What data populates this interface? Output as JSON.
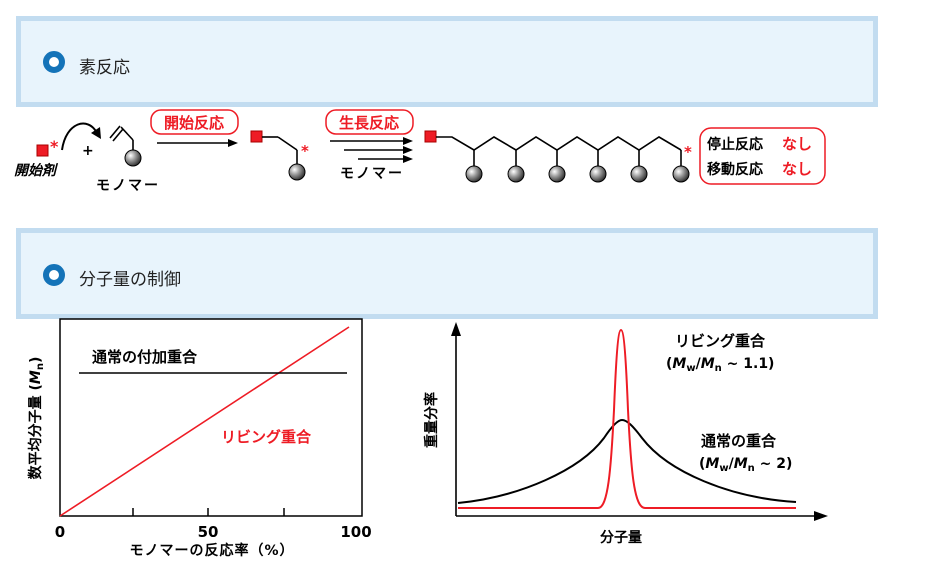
{
  "sections": {
    "s1": "素反応",
    "s2": "分子量の制御"
  },
  "scheme": {
    "initiator": "開始剤",
    "plus": "+",
    "monomer1": "モノマー",
    "init_rxn": "開始反応",
    "grow_rxn": "生長反応",
    "monomer2": "モノマー",
    "star": "*",
    "term_label": "停止反応",
    "transfer_label": "移動反応",
    "none1": "なし",
    "none2": "なし"
  },
  "chart_data": [
    {
      "type": "line",
      "x": [
        0,
        100
      ],
      "xlim": [
        0,
        100
      ],
      "xticks": [
        "0",
        "50",
        "100"
      ],
      "xlabel": "モノマーの反応率（%）",
      "ylabel": "数平均分子量 (Mn)",
      "series": [
        {
          "name": "リビング重合",
          "x": [
            0,
            100
          ],
          "y": [
            0,
            1.0
          ],
          "color": "#ee1c25"
        },
        {
          "name": "通常の付加重合",
          "x": [
            6,
            100
          ],
          "y": [
            0.72,
            0.72
          ],
          "color": "#000000"
        }
      ]
    },
    {
      "type": "line",
      "xlabel": "分子量",
      "ylabel": "重量分率",
      "series": [
        {
          "name": "リビング重合",
          "label": "(Mw/Mn ~ 1.1)",
          "color": "#ee1c25"
        },
        {
          "name": "通常の重合",
          "label": "(Mw/Mn ~ 2)",
          "color": "#000000"
        }
      ]
    }
  ],
  "left_chart": {
    "tick0": "0",
    "tick50": "50",
    "tick100": "100",
    "xlabel": "モノマーの反応率（%）",
    "ylabel_main": "数平均分子量 (",
    "ylabel_M": "M",
    "ylabel_n": "n",
    "ylabel_close": ")",
    "label_normal": "通常の付加重合",
    "label_living": "リビング重合"
  },
  "right_chart": {
    "xlabel": "分子量",
    "ylabel": "重量分率",
    "living": "リビング重合",
    "normal": "通常の重合",
    "living_pdi": "(Mw/Mn ~ 1.1)",
    "normal_pdi": "(Mw/Mn ~ 2)"
  },
  "colors": {
    "accent": "#1473b8",
    "red": "#ee1c25",
    "section_bg": "#e8f4fc",
    "section_border": "#c2dcf0"
  }
}
